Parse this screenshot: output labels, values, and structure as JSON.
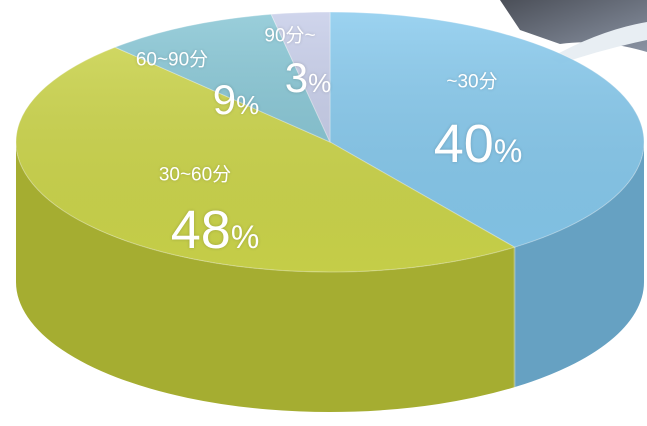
{
  "chart_data": {
    "type": "pie",
    "title": "",
    "unit": "%",
    "categories": [
      "~30分",
      "30~60分",
      "60~90分",
      "90分~"
    ],
    "values": [
      40,
      48,
      9,
      3
    ],
    "colors": [
      "#7cc4ec",
      "#c9d33c",
      "#79bfcf",
      "#c0c8e6"
    ],
    "labels": {
      "cat": [
        "~30分",
        "30~60分",
        "60~90分",
        "90分~"
      ],
      "pct": [
        "40",
        "48",
        "9",
        "3"
      ],
      "unit": "%"
    }
  }
}
